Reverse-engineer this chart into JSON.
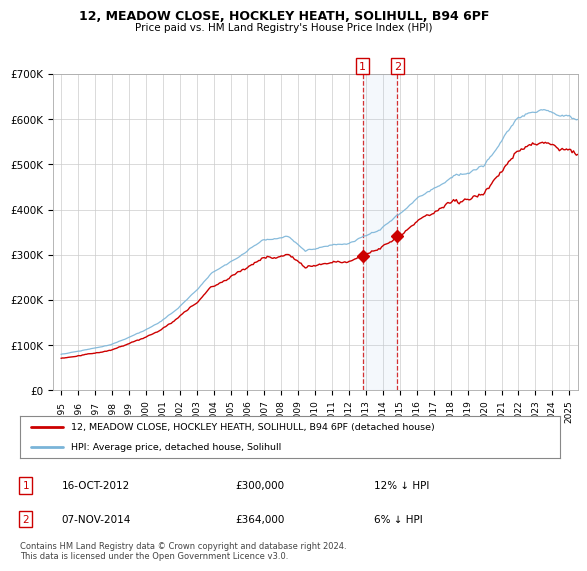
{
  "title": "12, MEADOW CLOSE, HOCKLEY HEATH, SOLIHULL, B94 6PF",
  "subtitle": "Price paid vs. HM Land Registry's House Price Index (HPI)",
  "legend_line1": "12, MEADOW CLOSE, HOCKLEY HEATH, SOLIHULL, B94 6PF (detached house)",
  "legend_line2": "HPI: Average price, detached house, Solihull",
  "transaction1_date": "16-OCT-2012",
  "transaction1_price": "£300,000",
  "transaction1_hpi": "12% ↓ HPI",
  "transaction2_date": "07-NOV-2014",
  "transaction2_price": "£364,000",
  "transaction2_hpi": "6% ↓ HPI",
  "footnote": "Contains HM Land Registry data © Crown copyright and database right 2024.\nThis data is licensed under the Open Government Licence v3.0.",
  "hpi_color": "#7ab4d8",
  "price_color": "#cc0000",
  "marker1_date_x": 2012.8,
  "marker2_date_x": 2014.85,
  "marker1_price": 300000,
  "marker2_price": 364000,
  "ylim_min": 0,
  "ylim_max": 700000,
  "xlim_min": 1994.5,
  "xlim_max": 2025.5,
  "background_color": "#ffffff",
  "plot_bg_color": "#ffffff",
  "grid_color": "#cccccc"
}
